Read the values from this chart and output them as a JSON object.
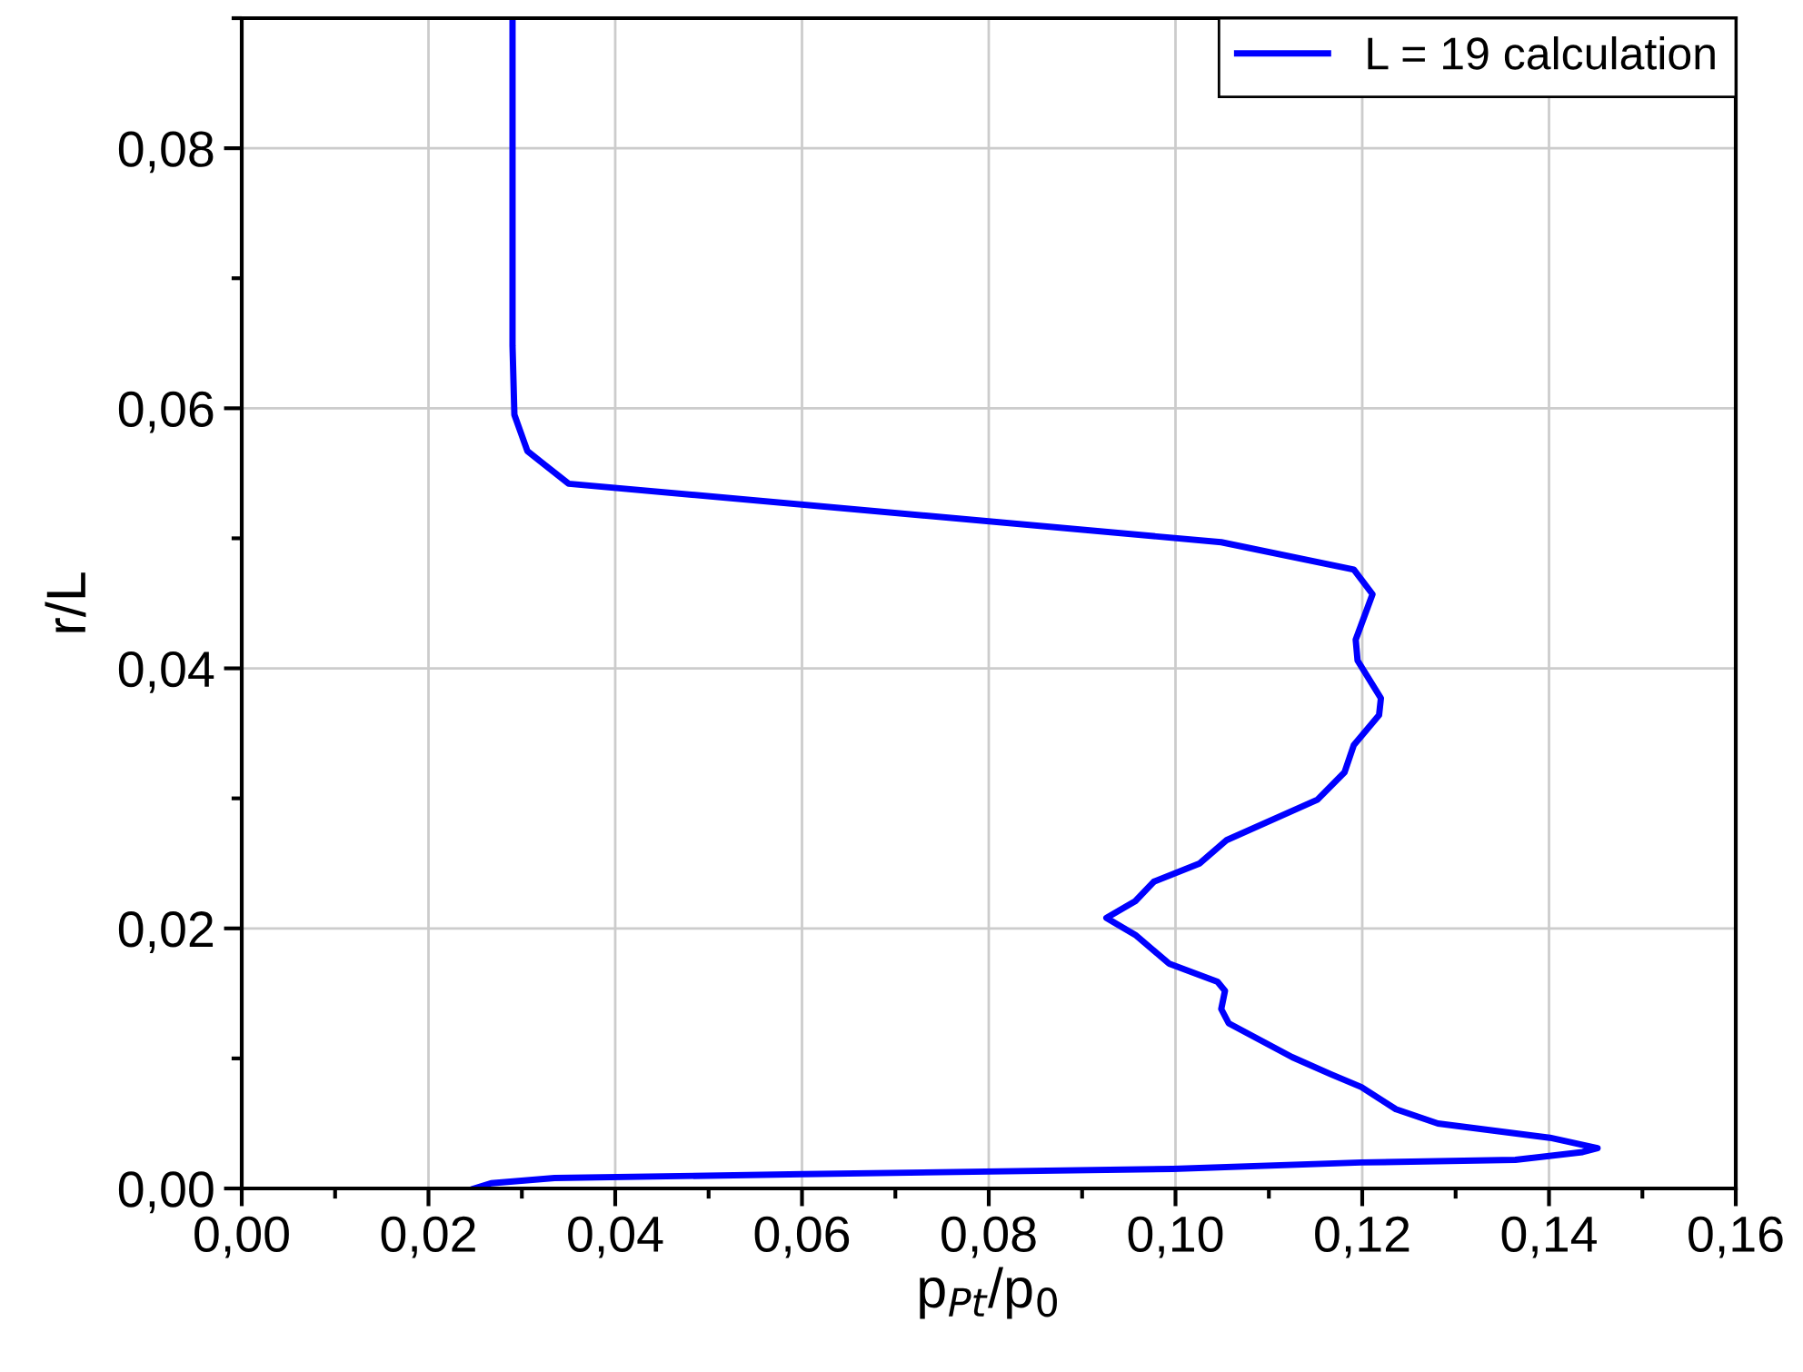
{
  "chart_data": {
    "type": "line",
    "xlabel": "p$_{Pt}$/p$_{0}$",
    "ylabel": "r/L",
    "xlim": [
      0,
      0.16
    ],
    "ylim": [
      0,
      0.09
    ],
    "xticks": [
      {
        "value": 0,
        "label": "0,00"
      },
      {
        "value": 0.02,
        "label": "0,02"
      },
      {
        "value": 0.04,
        "label": "0,04"
      },
      {
        "value": 0.06,
        "label": "0,06"
      },
      {
        "value": 0.08,
        "label": "0,08"
      },
      {
        "value": 0.1,
        "label": "0,10"
      },
      {
        "value": 0.12,
        "label": "0,12"
      },
      {
        "value": 0.14,
        "label": "0,14"
      },
      {
        "value": 0.16,
        "label": "0,16"
      }
    ],
    "yticks": [
      {
        "value": 0,
        "label": "0,00"
      },
      {
        "value": 0.02,
        "label": "0,02"
      },
      {
        "value": 0.04,
        "label": "0,04"
      },
      {
        "value": 0.06,
        "label": "0,06"
      },
      {
        "value": 0.08,
        "label": "0,08"
      }
    ],
    "grid": true,
    "legend": "top right",
    "marker": "none",
    "line_style": "solid",
    "series": [
      {
        "name": "L = 19 calculation",
        "color": "#0000ff",
        "x": [
          0.029,
          0.029,
          0.0292,
          0.0306,
          0.035,
          0.1049,
          0.1191,
          0.1211,
          0.1193,
          0.1195,
          0.122,
          0.1218,
          0.1191,
          0.1181,
          0.1152,
          0.1055,
          0.1026,
          0.0977,
          0.0957,
          0.0926,
          0.0957,
          0.0993,
          0.1045,
          0.1053,
          0.1049,
          0.1057,
          0.1125,
          0.1166,
          0.1199,
          0.1236,
          0.1281,
          0.1401,
          0.1452,
          0.1436,
          0.1364,
          0.1199,
          0.0997,
          0.0601,
          0.0335,
          0.0267,
          0.0249
        ],
        "values": [
          0.0899,
          0.0648,
          0.0595,
          0.0567,
          0.0542,
          0.0497,
          0.0476,
          0.0457,
          0.0422,
          0.0406,
          0.0377,
          0.0364,
          0.0341,
          0.032,
          0.0299,
          0.0268,
          0.025,
          0.0236,
          0.0221,
          0.0208,
          0.0195,
          0.0173,
          0.0159,
          0.0152,
          0.0138,
          0.0127,
          0.0101,
          0.0088,
          0.0078,
          0.0061,
          0.005,
          0.0039,
          0.0031,
          0.0028,
          0.0022,
          0.002,
          0.0015,
          0.0011,
          0.0008,
          0.0004,
          0.0
        ]
      }
    ]
  }
}
